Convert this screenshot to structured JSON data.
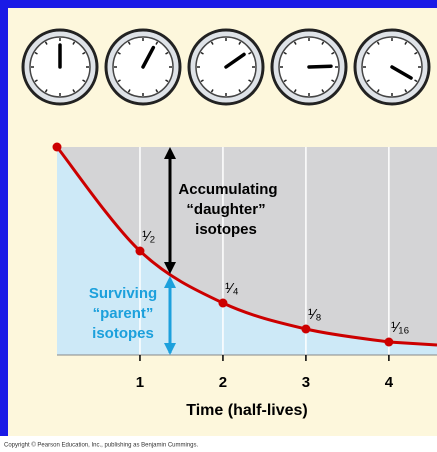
{
  "chart_data": {
    "type": "line",
    "x": [
      0,
      1,
      2,
      3,
      4
    ],
    "values": [
      1,
      0.5,
      0.25,
      0.125,
      0.0625
    ],
    "value_labels": [
      null,
      "¹⁄₂",
      "¹⁄₄",
      "¹⁄₈",
      "¹⁄₁₆"
    ],
    "color": "#cc0000",
    "xlim": [
      0,
      4.58
    ],
    "ylim": [
      0,
      1
    ],
    "xticks": [
      1,
      2,
      3,
      4
    ],
    "grid": true,
    "x_label": "Time (half-lives)",
    "annotations": [
      "Accumulating",
      "“daughter”",
      "isotopes",
      "Surviving",
      "“parent”",
      "isotopes"
    ],
    "footer": "Copyright © Pearson Education, Inc., publishing as Benjamin Cummings."
  }
}
